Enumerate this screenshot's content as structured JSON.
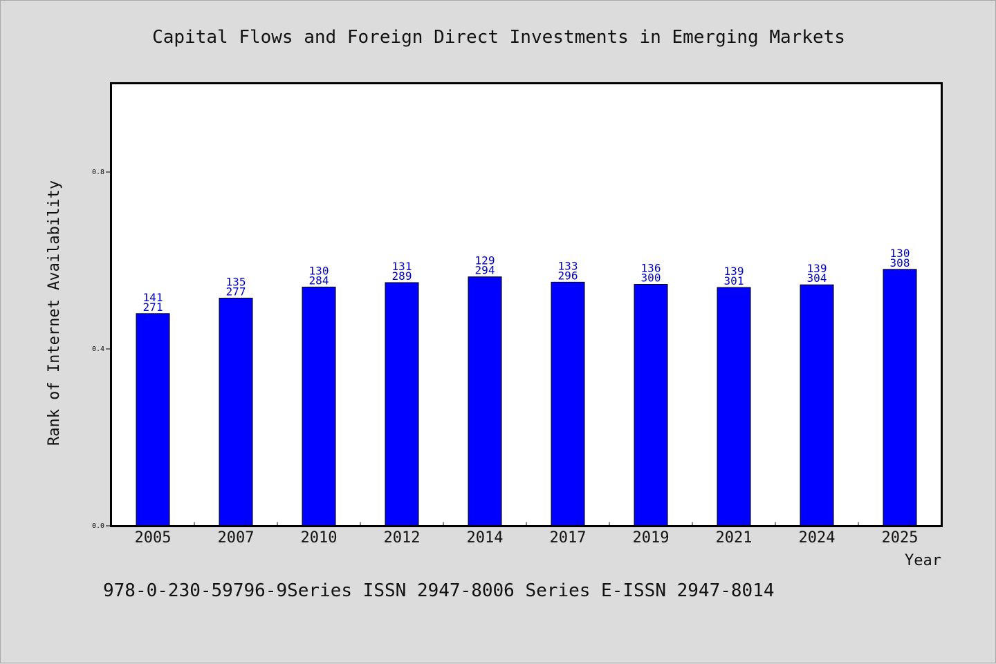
{
  "title": "Capital Flows and Foreign Direct Investments in Emerging Markets",
  "footer": "978-0-230-59796-9Series ISSN 2947-8006 Series E-ISSN 2947-8014",
  "chart_data": {
    "type": "bar",
    "title": "Capital Flows and Foreign Direct Investments in Emerging Markets",
    "xlabel": "Year",
    "ylabel": "Rank of Internet Availability",
    "categories": [
      "2005",
      "2007",
      "2010",
      "2012",
      "2014",
      "2017",
      "2019",
      "2021",
      "2024",
      "2025"
    ],
    "values": [
      0.48,
      0.515,
      0.54,
      0.55,
      0.563,
      0.551,
      0.546,
      0.539,
      0.545,
      0.58
    ],
    "labels_top": [
      "141",
      "135",
      "130",
      "131",
      "129",
      "133",
      "136",
      "139",
      "139",
      "130"
    ],
    "labels_bottom": [
      "271",
      "277",
      "284",
      "289",
      "294",
      "296",
      "300",
      "301",
      "304",
      "308"
    ],
    "ylim": [
      0,
      1.0
    ],
    "yticks": [
      0.0,
      0.4,
      0.8
    ],
    "ytick_labels": [
      "0.0",
      "0.4",
      "0.8"
    ],
    "grid": false,
    "bar_color": "#0000ff",
    "label_color": "#0000cc"
  }
}
